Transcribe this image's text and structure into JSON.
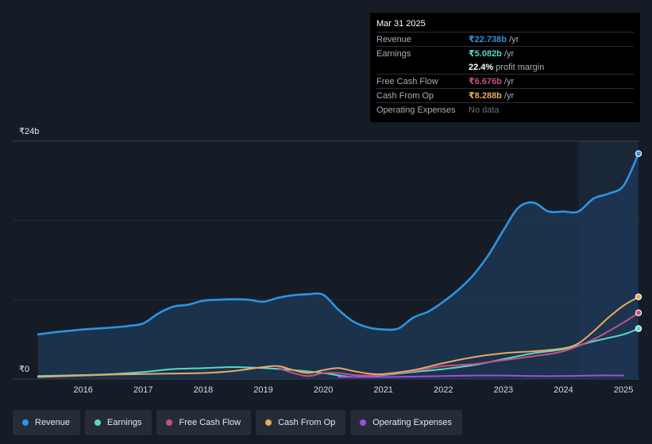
{
  "chart_data": {
    "type": "area",
    "currency": "₹",
    "y_axis": {
      "max_label": "₹24b",
      "min_label": "₹0",
      "ylim": [
        0,
        24
      ]
    },
    "x_ticks": [
      "2016",
      "2017",
      "2018",
      "2019",
      "2020",
      "2021",
      "2022",
      "2023",
      "2024",
      "2025"
    ],
    "series": [
      {
        "name": "Revenue",
        "key": "revenue",
        "color": "#2d94e4",
        "fill": true,
        "points": [
          [
            2015.25,
            4.5
          ],
          [
            2015.5,
            4.7
          ],
          [
            2015.75,
            4.85
          ],
          [
            2016,
            5.0
          ],
          [
            2016.25,
            5.1
          ],
          [
            2016.5,
            5.2
          ],
          [
            2016.75,
            5.35
          ],
          [
            2017,
            5.6
          ],
          [
            2017.25,
            6.6
          ],
          [
            2017.5,
            7.3
          ],
          [
            2017.75,
            7.5
          ],
          [
            2018,
            7.9
          ],
          [
            2018.25,
            8.0
          ],
          [
            2018.5,
            8.05
          ],
          [
            2018.75,
            8.0
          ],
          [
            2019,
            7.8
          ],
          [
            2019.25,
            8.2
          ],
          [
            2019.5,
            8.45
          ],
          [
            2019.75,
            8.55
          ],
          [
            2020,
            8.5
          ],
          [
            2020.25,
            7.0
          ],
          [
            2020.5,
            5.8
          ],
          [
            2020.75,
            5.2
          ],
          [
            2021,
            5.0
          ],
          [
            2021.25,
            5.1
          ],
          [
            2021.5,
            6.2
          ],
          [
            2021.75,
            6.8
          ],
          [
            2022,
            7.8
          ],
          [
            2022.25,
            9.0
          ],
          [
            2022.5,
            10.5
          ],
          [
            2022.75,
            12.5
          ],
          [
            2023,
            15.0
          ],
          [
            2023.25,
            17.3
          ],
          [
            2023.5,
            17.8
          ],
          [
            2023.75,
            16.9
          ],
          [
            2024,
            16.9
          ],
          [
            2024.25,
            16.9
          ],
          [
            2024.5,
            18.2
          ],
          [
            2024.75,
            18.7
          ],
          [
            2025,
            19.5
          ],
          [
            2025.25,
            22.738
          ]
        ]
      },
      {
        "name": "Earnings",
        "key": "earnings",
        "color": "#5ad6c8",
        "fill": false,
        "points": [
          [
            2015.25,
            0.3
          ],
          [
            2016,
            0.4
          ],
          [
            2016.5,
            0.5
          ],
          [
            2017,
            0.7
          ],
          [
            2017.5,
            1.0
          ],
          [
            2018,
            1.1
          ],
          [
            2018.5,
            1.2
          ],
          [
            2019,
            1.1
          ],
          [
            2019.5,
            0.9
          ],
          [
            2020,
            0.6
          ],
          [
            2020.5,
            0.2
          ],
          [
            2021,
            0.4
          ],
          [
            2021.5,
            0.7
          ],
          [
            2022,
            1.0
          ],
          [
            2022.5,
            1.4
          ],
          [
            2023,
            2.0
          ],
          [
            2023.5,
            2.6
          ],
          [
            2024,
            3.0
          ],
          [
            2024.5,
            3.8
          ],
          [
            2025,
            4.5
          ],
          [
            2025.25,
            5.082
          ]
        ]
      },
      {
        "name": "Free Cash Flow",
        "key": "fcf",
        "color": "#c84f86",
        "fill": false,
        "points": [
          [
            2019.25,
            1.1
          ],
          [
            2019.5,
            0.6
          ],
          [
            2019.75,
            0.3
          ],
          [
            2020,
            0.6
          ],
          [
            2020.25,
            0.6
          ],
          [
            2020.5,
            0.4
          ],
          [
            2020.75,
            0.35
          ],
          [
            2021,
            0.45
          ],
          [
            2021.5,
            0.8
          ],
          [
            2022,
            1.3
          ],
          [
            2022.5,
            1.5
          ],
          [
            2023,
            1.9
          ],
          [
            2023.5,
            2.3
          ],
          [
            2024,
            2.8
          ],
          [
            2024.5,
            4.0
          ],
          [
            2025,
            5.7
          ],
          [
            2025.25,
            6.676
          ]
        ]
      },
      {
        "name": "Cash From Op",
        "key": "cfo",
        "color": "#e8aa5e",
        "fill": false,
        "points": [
          [
            2015.25,
            0.2
          ],
          [
            2016,
            0.35
          ],
          [
            2016.5,
            0.45
          ],
          [
            2017,
            0.5
          ],
          [
            2017.5,
            0.55
          ],
          [
            2018,
            0.6
          ],
          [
            2018.5,
            0.8
          ],
          [
            2019,
            1.2
          ],
          [
            2019.25,
            1.3
          ],
          [
            2019.5,
            0.9
          ],
          [
            2019.75,
            0.6
          ],
          [
            2020,
            0.9
          ],
          [
            2020.25,
            1.1
          ],
          [
            2020.5,
            0.8
          ],
          [
            2020.75,
            0.55
          ],
          [
            2021,
            0.5
          ],
          [
            2021.5,
            0.9
          ],
          [
            2022,
            1.6
          ],
          [
            2022.5,
            2.2
          ],
          [
            2023,
            2.6
          ],
          [
            2023.5,
            2.8
          ],
          [
            2024,
            3.1
          ],
          [
            2024.25,
            3.6
          ],
          [
            2024.5,
            4.8
          ],
          [
            2024.75,
            6.2
          ],
          [
            2025,
            7.4
          ],
          [
            2025.25,
            8.288
          ]
        ]
      },
      {
        "name": "Operating Expenses",
        "key": "opex",
        "color": "#9c4fe0",
        "fill": false,
        "points": [
          [
            2020.25,
            0.2
          ],
          [
            2021,
            0.2
          ],
          [
            2021.5,
            0.25
          ],
          [
            2022,
            0.3
          ],
          [
            2022.5,
            0.35
          ],
          [
            2023,
            0.35
          ],
          [
            2023.5,
            0.3
          ],
          [
            2024,
            0.3
          ],
          [
            2024.5,
            0.35
          ],
          [
            2025,
            0.35
          ]
        ]
      }
    ]
  },
  "tooltip": {
    "date": "Mar 31 2025",
    "rows": [
      {
        "label": "Revenue",
        "value": "₹22.738b",
        "unit": "/yr",
        "color": "#2d94e4"
      },
      {
        "label": "Earnings",
        "value": "₹5.082b",
        "unit": "/yr",
        "color": "#5ad6c8"
      },
      {
        "label": "",
        "value": "22.4%",
        "unit": "profit margin",
        "color": "#ffffff"
      },
      {
        "label": "Free Cash Flow",
        "value": "₹6.676b",
        "unit": "/yr",
        "color": "#c84f86"
      },
      {
        "label": "Cash From Op",
        "value": "₹8.288b",
        "unit": "/yr",
        "color": "#e8aa5e"
      },
      {
        "label": "Operating Expenses",
        "value": "",
        "unit": "No data",
        "color": "#6b7079"
      }
    ]
  },
  "legend": [
    {
      "label": "Revenue",
      "color": "#2d94e4"
    },
    {
      "label": "Earnings",
      "color": "#5ad6c8"
    },
    {
      "label": "Free Cash Flow",
      "color": "#c84f86"
    },
    {
      "label": "Cash From Op",
      "color": "#e8aa5e"
    },
    {
      "label": "Operating Expenses",
      "color": "#9c4fe0"
    }
  ]
}
